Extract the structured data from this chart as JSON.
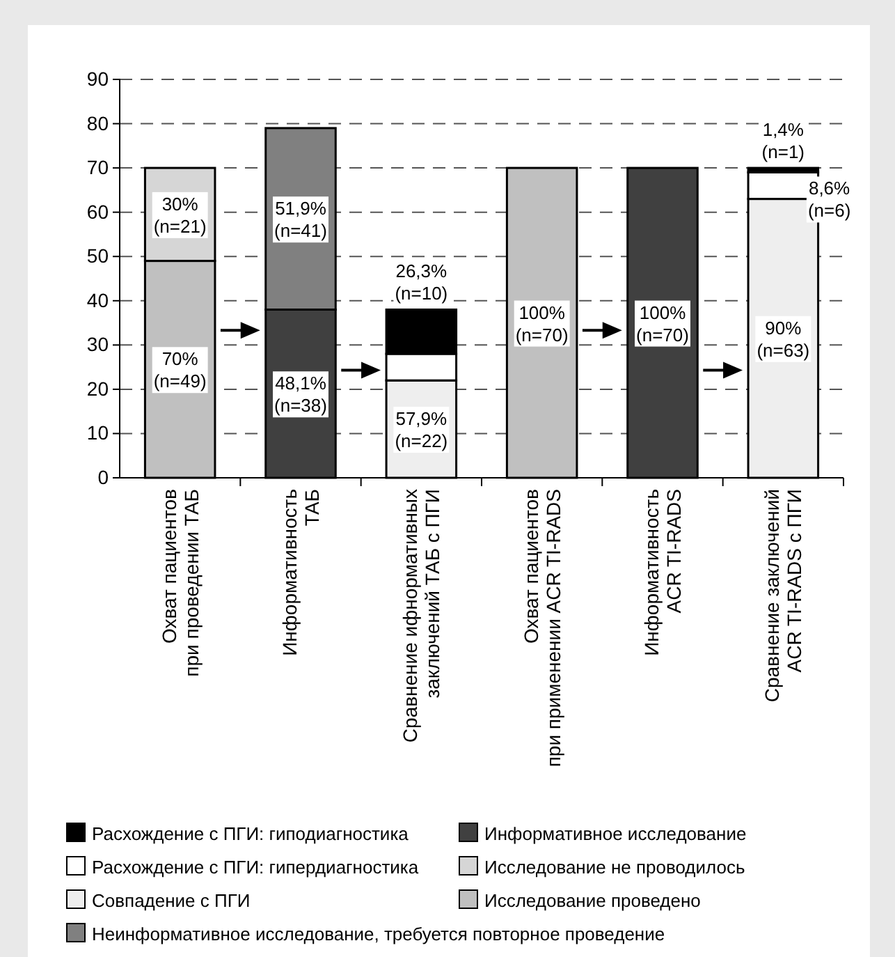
{
  "chart_data": {
    "type": "bar",
    "stacked": true,
    "categories": [
      "Охват пациентов\nпри проведении ТАБ",
      "Информативность\nТАБ",
      "Сравнение ифнормативных\nзаключений ТАБ с ПГИ",
      "Охват пациентов\nпри применении ACR TI-RADS",
      "Информативность\nACR TI-RADS",
      "Сравнение заключений\nACR TI-RADS с ПГИ"
    ],
    "series": [
      {
        "name": "Совпадение с ПГИ",
        "color": "#eeeeee",
        "values": [
          null,
          null,
          22,
          null,
          null,
          63
        ],
        "value_labels": [
          null,
          null,
          "57,9%\n(n=22)",
          null,
          null,
          "90%\n(n=63)"
        ]
      },
      {
        "name": "Исследование проведено",
        "color": "#c0c0c0",
        "values": [
          49,
          null,
          null,
          70,
          null,
          null
        ],
        "value_labels": [
          "70%\n(n=49)",
          null,
          null,
          "100%\n(n=70)",
          null,
          null
        ]
      },
      {
        "name": "Информативное исследование",
        "color": "#404040",
        "values": [
          null,
          38,
          null,
          null,
          70,
          null
        ],
        "value_labels": [
          null,
          "48,1%\n(n=38)",
          null,
          null,
          "100%\n(n=70)",
          null
        ]
      },
      {
        "name": "Расхождение с ПГИ: гипердиагностика",
        "color": "#ffffff",
        "values": [
          null,
          null,
          6,
          null,
          null,
          6
        ],
        "value_labels": [
          null,
          null,
          null,
          null,
          null,
          "8,6%\n(n=6)"
        ]
      },
      {
        "name": "Исследование не проводилось",
        "color": "#d6d6d6",
        "values": [
          21,
          null,
          null,
          null,
          null,
          null
        ],
        "value_labels": [
          "30%\n(n=21)",
          null,
          null,
          null,
          null,
          null
        ]
      },
      {
        "name": "Неинформативное исследование, требуется повторное проведение",
        "color": "#808080",
        "values": [
          null,
          41,
          null,
          null,
          null,
          null
        ],
        "value_labels": [
          null,
          "51,9%\n(n=41)",
          null,
          null,
          null,
          null
        ]
      },
      {
        "name": "Расхождение с ПГИ: гиподиагностика",
        "color": "#000000",
        "values": [
          null,
          null,
          10,
          null,
          null,
          1
        ],
        "value_labels": [
          null,
          null,
          "26,3%\n(n=10)",
          null,
          null,
          "1,4%\n(n=1)"
        ]
      }
    ],
    "ylim": [
      0,
      90
    ],
    "yticks": [
      0,
      10,
      20,
      30,
      40,
      50,
      60,
      70,
      80,
      90
    ],
    "grid": "y",
    "legend": "bottom"
  }
}
